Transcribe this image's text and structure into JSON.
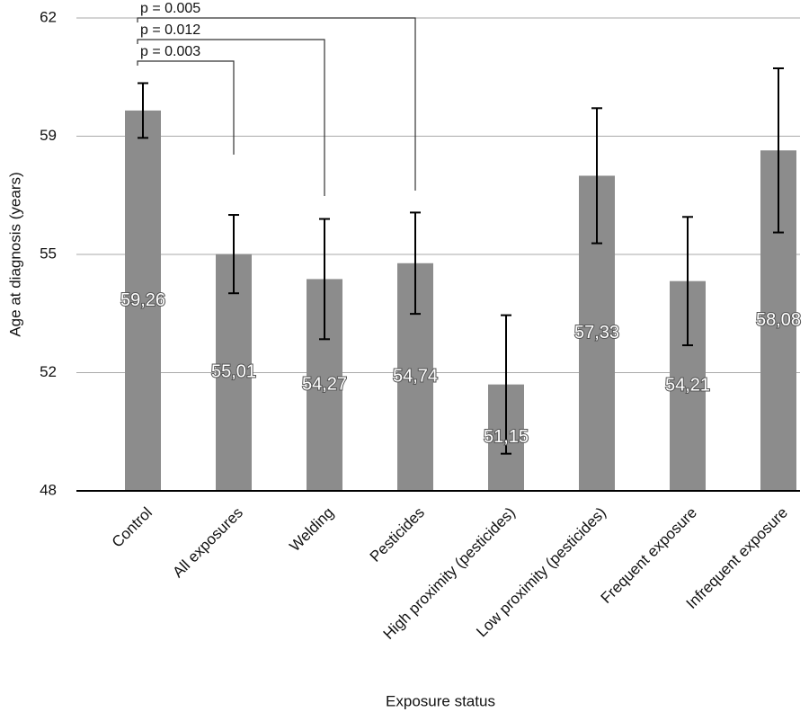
{
  "chart_data": {
    "type": "bar",
    "y_label": "Age at diagnosis (years)",
    "x_label": "Exposure status",
    "categories": [
      "Control",
      "All exposures",
      "Welding",
      "Pesticides",
      "High proximity (pesticides)",
      "Low proximity (pesticides)",
      "Frequent exposure",
      "Infrequent exposure"
    ],
    "values": [
      59.26,
      55.01,
      54.27,
      54.74,
      51.15,
      57.33,
      54.21,
      58.08
    ],
    "value_labels": [
      "59,26",
      "55,01",
      "54,27",
      "54,74",
      "51,15",
      "57,33",
      "54,21",
      "58,08"
    ],
    "errors": [
      0.81,
      1.16,
      1.78,
      1.5,
      2.05,
      2.0,
      1.9,
      2.43
    ],
    "color": "#8c8c8c",
    "ylim": [
      48,
      62
    ],
    "yticks": [
      48,
      {
        "value": 51.5,
        "label": "52"
      },
      55,
      {
        "value": 58.5,
        "label": "59"
      },
      62
    ],
    "grid": true,
    "annotations": [
      "p = 0.003",
      "p = 0.012",
      "p = 0.005"
    ]
  }
}
